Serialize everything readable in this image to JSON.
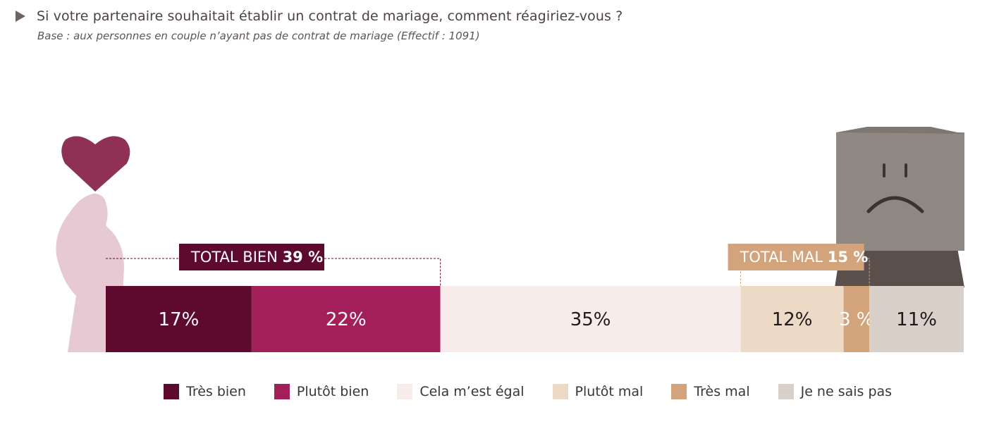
{
  "header": {
    "title": "Si votre partenaire souhaitait établir un contrat de mariage, comment réagiriez-vous ?",
    "subtitle": "Base : aux personnes en couple n’ayant pas de contrat de mariage (Effectif : 1091)"
  },
  "chart_data": {
    "type": "bar",
    "orientation": "horizontal-stacked-100",
    "series": [
      {
        "name": "Très bien",
        "value": 17,
        "label": "17%",
        "color": "#5e0a2e",
        "text_color": "#ffffff"
      },
      {
        "name": "Plutôt bien",
        "value": 22,
        "label": "22%",
        "color": "#a21f59",
        "text_color": "#ffffff"
      },
      {
        "name": "Cela m’est égal",
        "value": 35,
        "label": "35%",
        "color": "#f8eceb",
        "text_color": "#1f1a1a"
      },
      {
        "name": "Plutôt mal",
        "value": 12,
        "label": "12%",
        "color": "#ecdac7",
        "text_color": "#1f1a1a"
      },
      {
        "name": "Très mal",
        "value": 3,
        "label": "3 %",
        "color": "#d3a37c",
        "text_color": "#ffffff"
      },
      {
        "name": "Je ne sais pas",
        "value": 11,
        "label": "11%",
        "color": "#d9d0c9",
        "text_color": "#1f1a1a"
      }
    ],
    "totals": [
      {
        "label": "TOTAL BIEN",
        "value": "39 %",
        "color": "#5e0a2e",
        "spans": [
          0,
          1
        ]
      },
      {
        "label": "TOTAL MAL",
        "value": "15 %",
        "color": "#d3a37c",
        "spans": [
          3,
          4
        ]
      }
    ],
    "legend_position": "bottom",
    "grid": false
  }
}
